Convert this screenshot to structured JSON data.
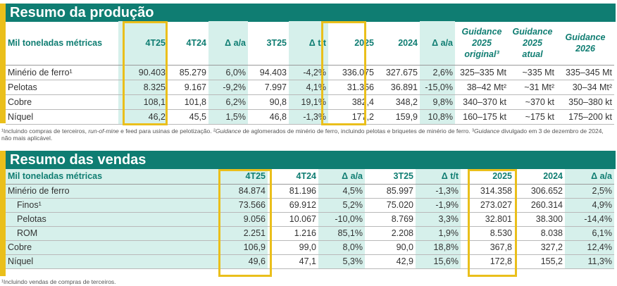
{
  "production": {
    "title": "Resumo da produção",
    "header": {
      "label": "Mil toneladas métricas",
      "cols": [
        "4T25",
        "4T24",
        "Δ a/a",
        "3T25",
        "Δ t/t",
        "2025",
        "2024",
        "Δ a/a"
      ],
      "guid1": [
        "Guidance",
        "2025",
        "original³"
      ],
      "guid2": [
        "Guidance",
        "2025",
        "atual"
      ],
      "guid3": [
        "Guidance",
        "2026"
      ]
    },
    "rows": [
      {
        "label": "Minério de ferro¹",
        "values": [
          "90.403",
          "85.279",
          "6,0%",
          "94.403",
          "-4,2%",
          "336.075",
          "327.675",
          "2,6%",
          "325–335 Mt",
          "~335 Mt",
          "335–345 Mt"
        ]
      },
      {
        "label": "Pelotas",
        "values": [
          "8.325",
          "9.167",
          "-9,2%",
          "7.997",
          "4,1%",
          "31.356",
          "36.891",
          "-15,0%",
          "38–42 Mt²",
          "~31 Mt²",
          "30–34 Mt²"
        ]
      },
      {
        "label": "Cobre",
        "values": [
          "108,1",
          "101,8",
          "6,2%",
          "90,8",
          "19,1%",
          "382,4",
          "348,2",
          "9,8%",
          "340–370 kt",
          "~370 kt",
          "350–380 kt"
        ]
      },
      {
        "label": "Níquel",
        "values": [
          "46,2",
          "45,5",
          "1,5%",
          "46,8",
          "-1,3%",
          "177,2",
          "159,9",
          "10,8%",
          "160–175 kt",
          "~175 kt",
          "175–200 kt"
        ]
      }
    ],
    "footnote": {
      "a": "¹Incluindo compras de terceiros, ",
      "b": "run-of-mine",
      "c": " e feed para usinas de pelotização. ²",
      "d": "Guidance",
      "e": " de aglomerados de minério de ferro, incluindo pelotas e briquetes de minério de ferro. ³",
      "f": "Guidance",
      "g": " divulgado em 3 de dezembro de 2024, não mais aplicável."
    }
  },
  "sales": {
    "title": "Resumo das vendas",
    "header": {
      "label": "Mil toneladas métricas",
      "cols": [
        "4T25",
        "4T24",
        "Δ a/a",
        "3T25",
        "Δ t/t",
        "2025",
        "2024",
        "Δ a/a"
      ]
    },
    "rows": [
      {
        "label": "Minério de ferro",
        "indent": false,
        "values": [
          "84.874",
          "81.196",
          "4,5%",
          "85.997",
          "-1,3%",
          "314.358",
          "306.652",
          "2,5%"
        ]
      },
      {
        "label": "Finos¹",
        "indent": true,
        "values": [
          "73.566",
          "69.912",
          "5,2%",
          "75.020",
          "-1,9%",
          "273.027",
          "260.314",
          "4,9%"
        ]
      },
      {
        "label": "Pelotas",
        "indent": true,
        "values": [
          "9.056",
          "10.067",
          "-10,0%",
          "8.769",
          "3,3%",
          "32.801",
          "38.300",
          "-14,4%"
        ]
      },
      {
        "label": "ROM",
        "indent": true,
        "values": [
          "2.251",
          "1.216",
          "85,1%",
          "2.208",
          "1,9%",
          "8.530",
          "8.038",
          "6,1%"
        ]
      },
      {
        "label": "Cobre",
        "indent": false,
        "values": [
          "106,9",
          "99,0",
          "8,0%",
          "90,0",
          "18,8%",
          "367,8",
          "327,2",
          "12,4%"
        ]
      },
      {
        "label": "Níquel",
        "indent": false,
        "values": [
          "49,6",
          "47,1",
          "5,3%",
          "42,9",
          "15,6%",
          "172,8",
          "155,2",
          "11,3%"
        ]
      }
    ],
    "footnote": "¹Incluindo vendas de compras de terceiros."
  },
  "colors": {
    "brand_green": "#0f7d72",
    "highlight_teal": "#d6f0eb",
    "accent_yellow": "#eabf1b"
  }
}
